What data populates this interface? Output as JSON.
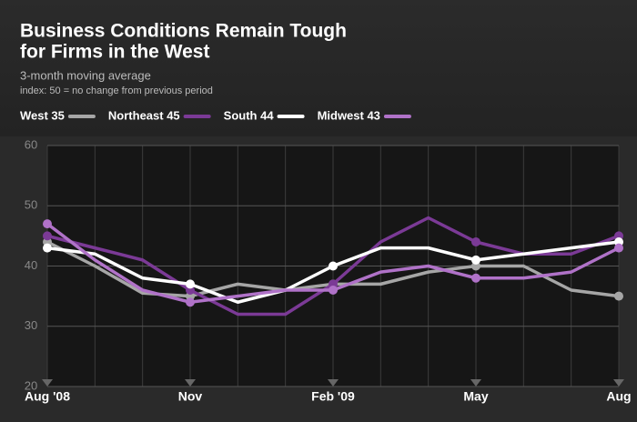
{
  "chart_data": {
    "type": "line",
    "title": [
      "Business Conditions Remain Tough",
      "for Firms in the West"
    ],
    "subtitle": "3-month moving average",
    "note": "index: 50 = no change from previous period",
    "categories": [
      "Aug '08",
      null,
      null,
      "Nov",
      null,
      null,
      "Feb '09",
      null,
      null,
      "May",
      null,
      null,
      "Aug"
    ],
    "series": [
      {
        "name": "West 35",
        "color": "#a6a6a6",
        "values": [
          44,
          40,
          35.5,
          35,
          37,
          36,
          37,
          37,
          39,
          40,
          40,
          36,
          35
        ]
      },
      {
        "name": "Northeast 45",
        "color": "#7b3a96",
        "values": [
          45,
          43,
          41,
          36,
          32,
          32,
          37,
          44,
          48,
          44,
          42,
          42,
          45
        ]
      },
      {
        "name": "South 44",
        "color": "#ffffff",
        "values": [
          43,
          42,
          38,
          37,
          34,
          36,
          40,
          43,
          43,
          41,
          42,
          43,
          44
        ]
      },
      {
        "name": "Midwest 43",
        "color": "#b072c8",
        "values": [
          47,
          41,
          36,
          34,
          35,
          36,
          36,
          39,
          40,
          38,
          38,
          39,
          43
        ]
      }
    ],
    "ylim": [
      20,
      60
    ],
    "yticks": [
      20,
      30,
      40,
      50,
      60
    ],
    "grid": true
  }
}
